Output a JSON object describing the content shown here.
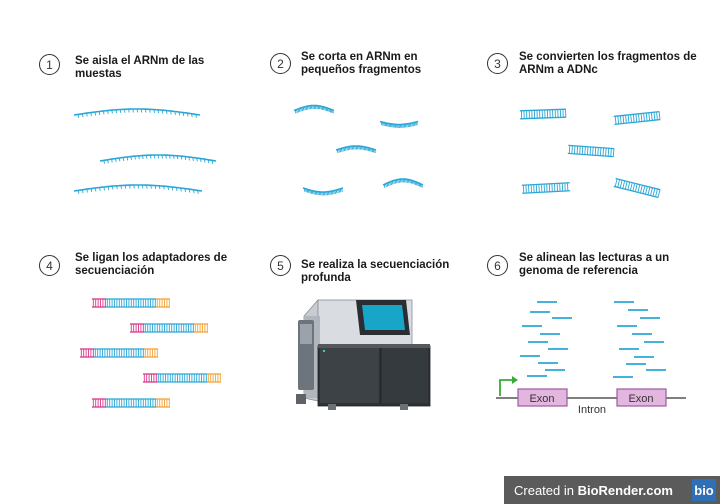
{
  "steps": [
    {
      "number": "1",
      "title": "Se aisla el ARNm de las muestas"
    },
    {
      "number": "2",
      "title": "Se corta en ARNm en pequeños fragmentos"
    },
    {
      "number": "3",
      "title": "Se convierten los fragmentos de ARNm a ADNc"
    },
    {
      "number": "4",
      "title": "Se ligan los adaptadores de secuenciación"
    },
    {
      "number": "5",
      "title": "Se realiza la secuenciación profunda"
    },
    {
      "number": "6",
      "title": "Se alinean las lecturas a un genoma de referencia"
    }
  ],
  "genome": {
    "exon1": "Exon",
    "exon2": "Exon",
    "intron": "Intron"
  },
  "footer": {
    "created_prefix": "Created in ",
    "brand": "BioRender.com",
    "logo": "bio"
  },
  "colors": {
    "rna": "#2aa7d6",
    "adapter_pink": "#d8388c",
    "adapter_orange": "#f2a33a",
    "exon_fill": "#e3b6e0",
    "exon_border": "#9c5aa0",
    "promoter": "#3aaa35"
  }
}
